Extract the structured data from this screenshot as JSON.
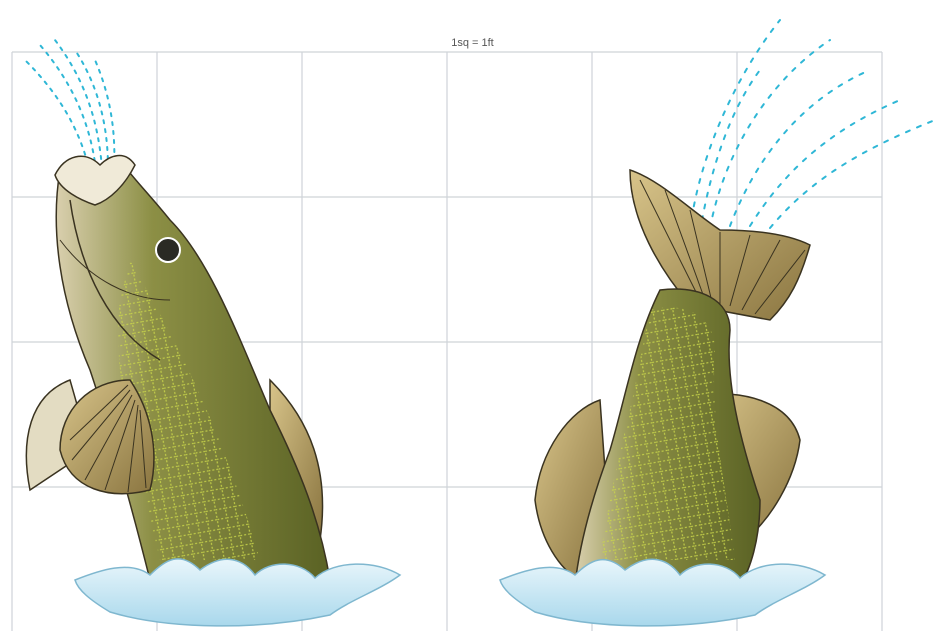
{
  "scale_label": "1sq = 1ft",
  "grid": {
    "columns": 6,
    "rows": 4,
    "line_color": "#cfd3d8"
  },
  "colors": {
    "fish_body": "#6f7a2e",
    "fish_dark": "#4e5520",
    "fish_pattern": "#c9d64a",
    "fin": "#a8925a",
    "fin_ray": "#3a3320",
    "belly": "#d9cfae",
    "water_splash": "#bfe3f2",
    "water_spray": "#2fb7d6"
  },
  "figures": [
    {
      "name": "bass-jumping-head-up"
    },
    {
      "name": "bass-diving-tail-up"
    }
  ]
}
